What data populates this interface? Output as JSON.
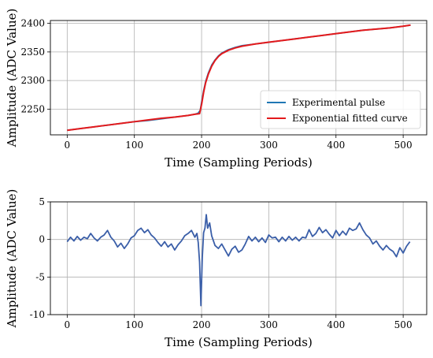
{
  "chart_data": [
    {
      "type": "line",
      "title": "",
      "xlabel": "Time (Sampling Periods)",
      "ylabel": "Amplitude (ADC Value)",
      "xlim": [
        -25,
        535
      ],
      "ylim": [
        2205,
        2405
      ],
      "xticks": [
        0,
        100,
        200,
        300,
        400,
        500
      ],
      "yticks": [
        2250,
        2300,
        2350,
        2400
      ],
      "grid": true,
      "legend_position": "bottom-right",
      "series": [
        {
          "name": "Experimental pulse",
          "color": "#1f77b4",
          "x": [
            0,
            20,
            40,
            60,
            80,
            100,
            120,
            140,
            160,
            180,
            190,
            195,
            198,
            200,
            203,
            206,
            210,
            215,
            220,
            225,
            230,
            240,
            250,
            260,
            280,
            300,
            320,
            340,
            360,
            380,
            400,
            420,
            440,
            460,
            480,
            500,
            511
          ],
          "y": [
            2213,
            2216,
            2219,
            2222,
            2225,
            2228,
            2230,
            2233,
            2236,
            2239,
            2241,
            2243,
            2248,
            2262,
            2282,
            2298,
            2313,
            2327,
            2336,
            2343,
            2348,
            2354,
            2358,
            2361,
            2364,
            2367,
            2370,
            2373,
            2376,
            2379,
            2382,
            2385,
            2388,
            2390,
            2392,
            2395,
            2397
          ]
        },
        {
          "name": "Exponential fitted curve",
          "color": "#e31a1c",
          "x": [
            0,
            20,
            40,
            60,
            80,
            100,
            120,
            140,
            160,
            180,
            190,
            197,
            200,
            203,
            206,
            210,
            215,
            220,
            225,
            230,
            240,
            250,
            260,
            280,
            300,
            320,
            340,
            360,
            380,
            400,
            420,
            440,
            460,
            480,
            500,
            511
          ],
          "y": [
            2213,
            2216,
            2219,
            2222,
            2225,
            2228,
            2231,
            2234,
            2236,
            2239,
            2241,
            2242,
            2258,
            2279,
            2296,
            2311,
            2325,
            2335,
            2342,
            2347,
            2353,
            2357,
            2360,
            2364,
            2367,
            2370,
            2373,
            2376,
            2379,
            2382,
            2385,
            2388,
            2390,
            2392,
            2395,
            2397
          ]
        }
      ]
    },
    {
      "type": "line",
      "title": "",
      "xlabel": "Time (Sampling Periods)",
      "ylabel": "Amplitude (ADC Value)",
      "xlim": [
        -25,
        535
      ],
      "ylim": [
        -10,
        5
      ],
      "xticks": [
        0,
        100,
        200,
        300,
        400,
        500
      ],
      "yticks": [
        -10,
        -5,
        0,
        5
      ],
      "grid": true,
      "series": [
        {
          "name": "",
          "color": "#3a5ea8",
          "x": [
            0,
            5,
            10,
            15,
            20,
            25,
            30,
            35,
            40,
            45,
            50,
            55,
            60,
            65,
            70,
            75,
            80,
            85,
            90,
            95,
            100,
            105,
            110,
            115,
            120,
            125,
            130,
            135,
            140,
            145,
            150,
            155,
            160,
            165,
            170,
            175,
            180,
            185,
            190,
            193,
            195,
            197,
            199,
            201,
            203,
            205,
            207,
            209,
            212,
            215,
            220,
            225,
            230,
            235,
            240,
            245,
            250,
            255,
            260,
            265,
            270,
            275,
            280,
            285,
            290,
            295,
            300,
            305,
            310,
            315,
            320,
            325,
            330,
            335,
            340,
            345,
            350,
            355,
            360,
            365,
            370,
            375,
            380,
            385,
            390,
            395,
            400,
            405,
            410,
            415,
            420,
            425,
            430,
            435,
            440,
            445,
            450,
            455,
            460,
            465,
            470,
            475,
            480,
            485,
            490,
            495,
            500,
            505,
            510
          ],
          "y": [
            -0.3,
            0.3,
            -0.2,
            0.4,
            -0.1,
            0.3,
            0.1,
            0.8,
            0.2,
            -0.2,
            0.3,
            0.6,
            1.2,
            0.3,
            -0.2,
            -1.0,
            -0.5,
            -1.2,
            -0.6,
            0.2,
            0.5,
            1.2,
            1.5,
            0.9,
            1.3,
            0.6,
            0.2,
            -0.4,
            -0.9,
            -0.3,
            -1.0,
            -0.6,
            -1.4,
            -0.7,
            -0.2,
            0.5,
            0.8,
            1.2,
            0.3,
            0.8,
            -0.4,
            -3.0,
            -8.8,
            -2.5,
            0.9,
            1.5,
            3.3,
            1.5,
            2.2,
            0.5,
            -0.8,
            -1.2,
            -0.6,
            -1.4,
            -2.2,
            -1.3,
            -0.9,
            -1.7,
            -1.4,
            -0.6,
            0.4,
            -0.2,
            0.3,
            -0.3,
            0.2,
            -0.4,
            0.6,
            0.2,
            0.3,
            -0.3,
            0.3,
            -0.2,
            0.4,
            -0.1,
            0.3,
            -0.2,
            0.3,
            0.2,
            1.3,
            0.4,
            0.8,
            1.6,
            0.9,
            1.3,
            0.7,
            0.2,
            1.2,
            0.5,
            1.1,
            0.6,
            1.5,
            1.2,
            1.4,
            2.2,
            1.3,
            0.6,
            0.2,
            -0.6,
            -0.2,
            -0.9,
            -1.4,
            -0.8,
            -1.3,
            -1.6,
            -2.3,
            -1.1,
            -1.8,
            -0.9,
            -0.3
          ]
        }
      ]
    }
  ]
}
